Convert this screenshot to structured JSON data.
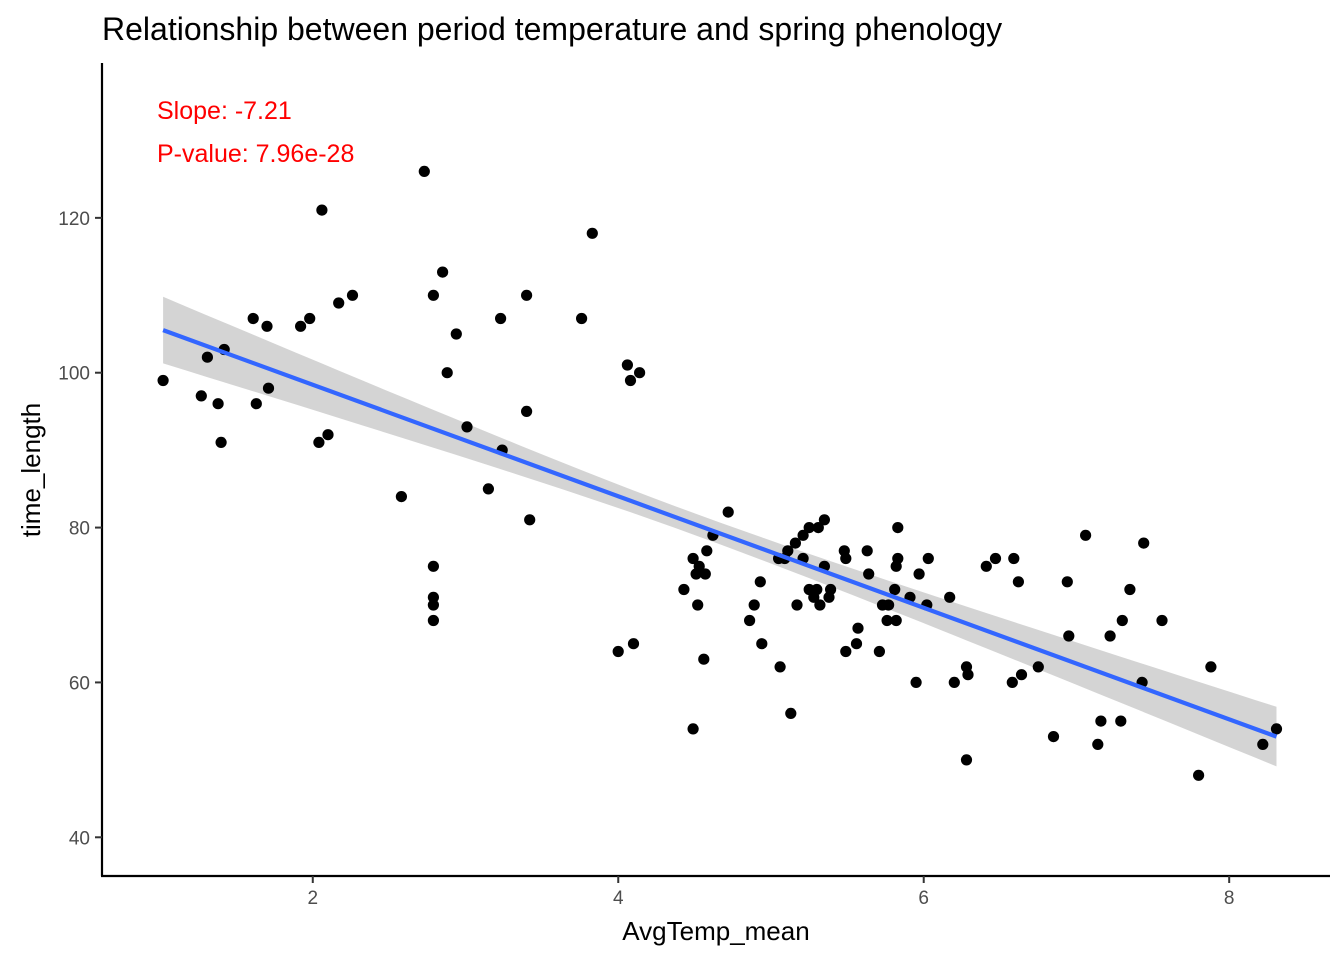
{
  "chart_data": {
    "type": "scatter",
    "title": "Relationship between period temperature and spring phenology",
    "xlabel": "AvgTemp_mean",
    "ylabel": "time_length",
    "xlim": [
      0.62,
      8.66
    ],
    "ylim": [
      35,
      140
    ],
    "xticks": [
      2,
      4,
      6,
      8
    ],
    "yticks": [
      40,
      60,
      80,
      100,
      120
    ],
    "grid": false,
    "points": [
      [
        1.02,
        99
      ],
      [
        1.27,
        97
      ],
      [
        1.31,
        102
      ],
      [
        1.38,
        96
      ],
      [
        1.4,
        91
      ],
      [
        1.42,
        103
      ],
      [
        1.61,
        107
      ],
      [
        1.63,
        96
      ],
      [
        1.7,
        106
      ],
      [
        1.71,
        98
      ],
      [
        1.92,
        106
      ],
      [
        1.98,
        107
      ],
      [
        2.04,
        91
      ],
      [
        2.06,
        121
      ],
      [
        2.1,
        92
      ],
      [
        2.17,
        109
      ],
      [
        2.26,
        110
      ],
      [
        2.58,
        84
      ],
      [
        2.73,
        126
      ],
      [
        2.79,
        110
      ],
      [
        2.79,
        75
      ],
      [
        2.79,
        71
      ],
      [
        2.79,
        70
      ],
      [
        2.79,
        68
      ],
      [
        2.85,
        113
      ],
      [
        2.88,
        100
      ],
      [
        2.94,
        105
      ],
      [
        3.01,
        93
      ],
      [
        3.15,
        85
      ],
      [
        3.23,
        107
      ],
      [
        3.24,
        90
      ],
      [
        3.4,
        110
      ],
      [
        3.4,
        95
      ],
      [
        3.42,
        81
      ],
      [
        3.76,
        107
      ],
      [
        3.83,
        118
      ],
      [
        4.0,
        64
      ],
      [
        4.06,
        101
      ],
      [
        4.08,
        99
      ],
      [
        4.1,
        65
      ],
      [
        4.14,
        100
      ],
      [
        4.43,
        72
      ],
      [
        4.49,
        76
      ],
      [
        4.49,
        54
      ],
      [
        4.51,
        74
      ],
      [
        4.52,
        70
      ],
      [
        4.53,
        75
      ],
      [
        4.56,
        63
      ],
      [
        4.57,
        74
      ],
      [
        4.58,
        77
      ],
      [
        4.62,
        79
      ],
      [
        4.72,
        82
      ],
      [
        4.86,
        68
      ],
      [
        4.89,
        70
      ],
      [
        4.93,
        73
      ],
      [
        4.94,
        65
      ],
      [
        5.05,
        76
      ],
      [
        5.06,
        62
      ],
      [
        5.09,
        76
      ],
      [
        5.11,
        77
      ],
      [
        5.13,
        56
      ],
      [
        5.16,
        78
      ],
      [
        5.17,
        70
      ],
      [
        5.21,
        79
      ],
      [
        5.21,
        76
      ],
      [
        5.25,
        72
      ],
      [
        5.25,
        80
      ],
      [
        5.28,
        71
      ],
      [
        5.3,
        72
      ],
      [
        5.31,
        80
      ],
      [
        5.32,
        70
      ],
      [
        5.35,
        81
      ],
      [
        5.35,
        75
      ],
      [
        5.38,
        71
      ],
      [
        5.39,
        72
      ],
      [
        5.48,
        77
      ],
      [
        5.49,
        76
      ],
      [
        5.49,
        64
      ],
      [
        5.56,
        65
      ],
      [
        5.57,
        67
      ],
      [
        5.63,
        77
      ],
      [
        5.64,
        74
      ],
      [
        5.71,
        64
      ],
      [
        5.73,
        70
      ],
      [
        5.76,
        68
      ],
      [
        5.77,
        70
      ],
      [
        5.81,
        72
      ],
      [
        5.82,
        68
      ],
      [
        5.82,
        75
      ],
      [
        5.83,
        76
      ],
      [
        5.83,
        80
      ],
      [
        5.91,
        71
      ],
      [
        5.95,
        60
      ],
      [
        5.97,
        74
      ],
      [
        6.02,
        70
      ],
      [
        6.03,
        76
      ],
      [
        6.17,
        71
      ],
      [
        6.2,
        60
      ],
      [
        6.28,
        50
      ],
      [
        6.28,
        62
      ],
      [
        6.29,
        61
      ],
      [
        6.41,
        75
      ],
      [
        6.47,
        76
      ],
      [
        6.58,
        60
      ],
      [
        6.59,
        76
      ],
      [
        6.62,
        73
      ],
      [
        6.64,
        61
      ],
      [
        6.75,
        62
      ],
      [
        6.85,
        53
      ],
      [
        6.94,
        73
      ],
      [
        6.95,
        66
      ],
      [
        7.06,
        79
      ],
      [
        7.14,
        52
      ],
      [
        7.16,
        55
      ],
      [
        7.22,
        66
      ],
      [
        7.29,
        55
      ],
      [
        7.3,
        68
      ],
      [
        7.35,
        72
      ],
      [
        7.43,
        60
      ],
      [
        7.44,
        78
      ],
      [
        7.56,
        68
      ],
      [
        7.8,
        48
      ],
      [
        7.88,
        62
      ],
      [
        8.22,
        52
      ],
      [
        8.31,
        54
      ]
    ],
    "fit": {
      "method": "lm",
      "x": [
        1.02,
        8.31
      ],
      "y": [
        105.5,
        53.0
      ],
      "ci_upper": [
        109.8,
        56.8
      ],
      "ci_lower": [
        101.2,
        49.1
      ],
      "ci_mid_x": 4.5,
      "ci_mid_half_width": 1.4,
      "line_color": "#3366ff",
      "ribbon_color": "#cccccc"
    },
    "point_color": "#000000",
    "annotations": [
      {
        "text": "Slope: -7.21",
        "color": "#ff0000"
      },
      {
        "text": "P-value: 7.96e-28",
        "color": "#ff0000"
      }
    ]
  }
}
